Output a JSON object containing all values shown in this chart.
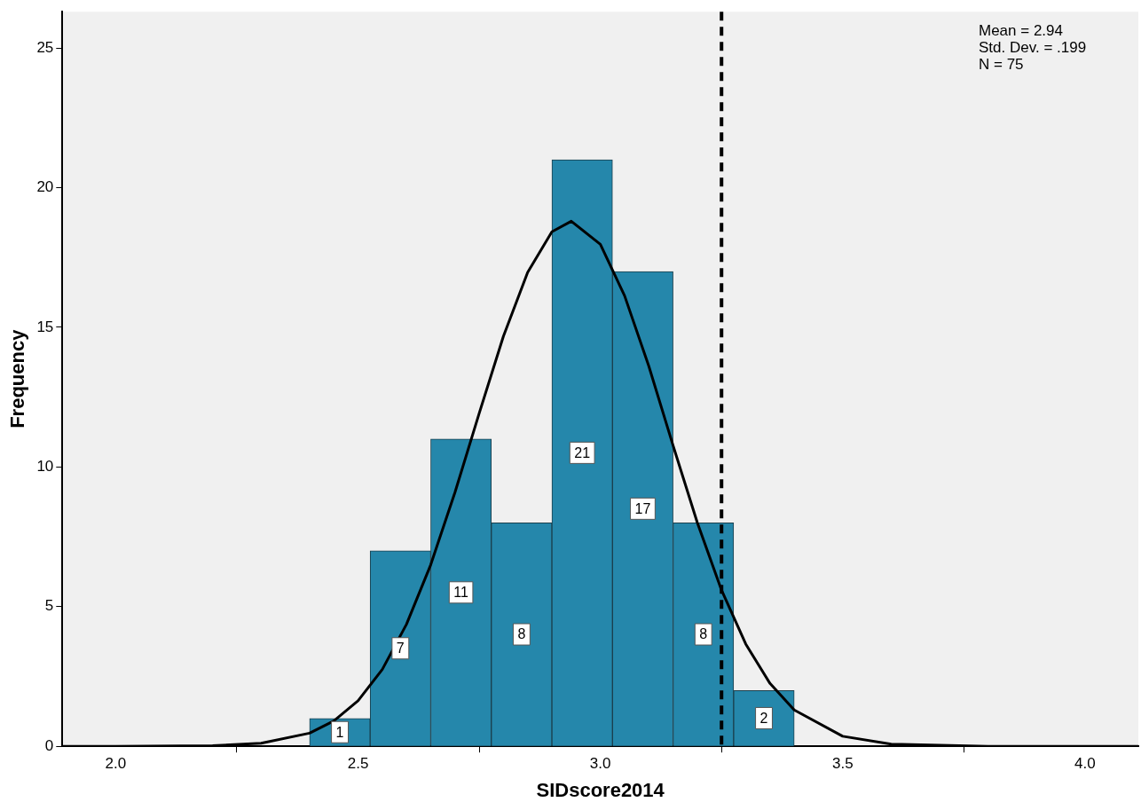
{
  "chart_data": {
    "type": "histogram",
    "xlabel": "SIDscore2014",
    "ylabel": "Frequency",
    "bins": [
      2.4,
      2.525,
      2.65,
      2.775,
      2.9,
      3.025,
      3.15,
      3.275,
      3.4
    ],
    "values": [
      1,
      7,
      11,
      8,
      21,
      17,
      8,
      2
    ],
    "color": "#2587ab",
    "value_labels": [
      "1",
      "7",
      "11",
      "8",
      "21",
      "17",
      "8",
      "2"
    ],
    "series": [
      {
        "type": "line",
        "color": "#000000",
        "marker": "none",
        "x": [
          1.89,
          2.0,
          2.2,
          2.3,
          2.4,
          2.45,
          2.5,
          2.55,
          2.6,
          2.65,
          2.7,
          2.75,
          2.8,
          2.85,
          2.9,
          2.94,
          3.0,
          3.05,
          3.1,
          3.15,
          3.2,
          3.25,
          3.3,
          3.35,
          3.4,
          3.5,
          3.6,
          3.8,
          4.11
        ],
        "values": [
          0,
          0,
          0.02,
          0.11,
          0.47,
          0.91,
          1.63,
          2.75,
          4.37,
          6.5,
          9.09,
          11.92,
          14.68,
          16.97,
          18.42,
          18.8,
          17.97,
          16.13,
          13.61,
          10.77,
          8.01,
          5.59,
          3.66,
          2.25,
          1.3,
          0.36,
          0.08,
          0,
          0
        ]
      }
    ],
    "ref_lines": [
      {
        "axis": "x",
        "value": 3.25,
        "color": "#000000",
        "line_style": "dashed"
      }
    ],
    "annotations": [
      "Mean = 2.94",
      "Std. Dev. = .199",
      "N = 75"
    ],
    "xlim": [
      1.89,
      4.11
    ],
    "xticks": [
      {
        "value": 2,
        "label": "2.0"
      },
      {
        "value": 2.5,
        "label": "2.5"
      },
      {
        "value": 3,
        "label": "3.0"
      },
      {
        "value": 3.5,
        "label": "3.5"
      },
      {
        "value": 4,
        "label": "4.0"
      }
    ],
    "ylim": [
      0,
      26.3
    ],
    "yticks": [
      0,
      5,
      10,
      15,
      20,
      25
    ],
    "grid": false,
    "legend": false
  }
}
